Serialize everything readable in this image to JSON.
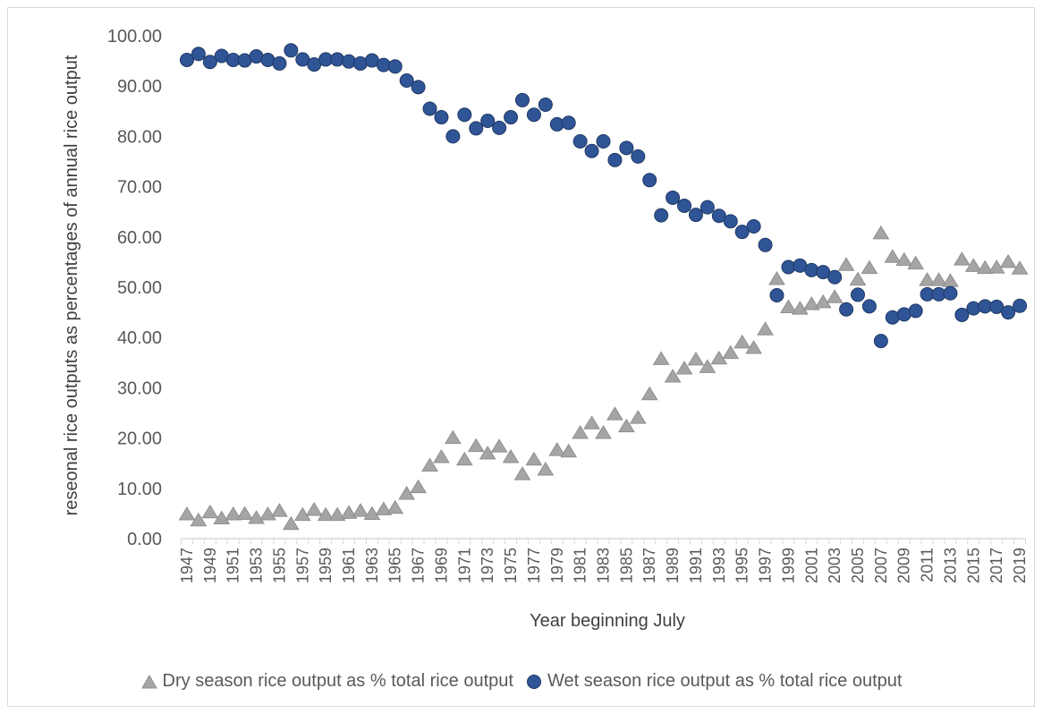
{
  "chart_data": {
    "type": "scatter",
    "x_label": "Year beginning July",
    "y_label": "reseonal rice outputs as percentages of annual rice output",
    "categories": [
      "1947",
      null,
      "1949",
      null,
      "1951",
      null,
      "1953",
      null,
      "1955",
      null,
      "1957",
      null,
      "1959",
      null,
      "1961",
      null,
      "1963",
      null,
      "1965",
      null,
      "1967",
      null,
      "1969",
      null,
      "1971",
      null,
      "1973",
      null,
      "1975",
      null,
      "1977",
      null,
      "1979",
      null,
      "1981",
      null,
      "1983",
      null,
      "1985",
      null,
      "1987",
      null,
      "1989",
      null,
      "1991",
      null,
      "1993",
      null,
      "1995",
      null,
      "1997",
      null,
      "1999",
      null,
      "2001",
      null,
      "2003",
      null,
      "2005",
      null,
      "2007",
      null,
      "2009",
      null,
      "2011",
      null,
      "2013",
      null,
      "2015",
      null,
      "2017",
      null,
      "2019"
    ],
    "ylim": [
      0,
      100
    ],
    "yticks": [
      {
        "value": 0,
        "label": "0.00"
      },
      {
        "value": 10,
        "label": "10.00"
      },
      {
        "value": 20,
        "label": "20.00"
      },
      {
        "value": 30,
        "label": "30.00"
      },
      {
        "value": 40,
        "label": "40.00"
      },
      {
        "value": 50,
        "label": "50.00"
      },
      {
        "value": 60,
        "label": "60.00"
      },
      {
        "value": 70,
        "label": "70.00"
      },
      {
        "value": 80,
        "label": "80.00"
      },
      {
        "value": 90,
        "label": "90.00"
      },
      {
        "value": 100,
        "label": "100.00"
      }
    ],
    "series": [
      {
        "name": "Dry season rice output as % total rice output",
        "color": "#a5a5a5",
        "marker": "triangle",
        "values": [
          4.8,
          3.6,
          5.2,
          4.0,
          4.8,
          4.9,
          4.1,
          4.8,
          5.5,
          2.9,
          4.7,
          5.7,
          4.7,
          4.7,
          5.1,
          5.5,
          4.9,
          5.8,
          6.1,
          8.9,
          10.2,
          14.5,
          16.2,
          20.0,
          15.7,
          18.4,
          16.9,
          18.3,
          16.2,
          12.8,
          15.7,
          13.7,
          17.6,
          17.3,
          21.0,
          22.9,
          21.0,
          24.7,
          22.3,
          24.0,
          28.7,
          35.7,
          32.2,
          33.8,
          35.6,
          34.1,
          35.8,
          36.9,
          39.0,
          37.9,
          41.6,
          51.6,
          46.0,
          45.7,
          46.6,
          47.0,
          48.0,
          54.4,
          51.5,
          53.8,
          60.7,
          56.0,
          55.4,
          54.7,
          51.4,
          51.4,
          51.2,
          55.5,
          54.2,
          53.8,
          53.9,
          55.0,
          53.7
        ]
      },
      {
        "name": "Wet season rice output as % total rice output",
        "color": "#2f5597",
        "marker": "circle",
        "values": [
          95.2,
          96.4,
          94.8,
          96.0,
          95.2,
          95.1,
          95.9,
          95.2,
          94.5,
          97.1,
          95.3,
          94.3,
          95.3,
          95.3,
          94.9,
          94.5,
          95.1,
          94.2,
          93.9,
          91.1,
          89.8,
          85.5,
          83.8,
          80.0,
          84.3,
          81.6,
          83.1,
          81.7,
          83.8,
          87.2,
          84.3,
          86.3,
          82.4,
          82.7,
          79.0,
          77.1,
          79.0,
          75.3,
          77.7,
          76.0,
          71.3,
          64.3,
          67.8,
          66.2,
          64.4,
          65.9,
          64.2,
          63.1,
          61.0,
          62.1,
          58.4,
          48.4,
          54.0,
          54.3,
          53.4,
          53.0,
          52.0,
          45.6,
          48.5,
          46.2,
          39.3,
          44.0,
          44.6,
          45.3,
          48.6,
          48.6,
          48.8,
          44.5,
          45.8,
          46.2,
          46.1,
          45.0,
          46.3
        ]
      }
    ]
  }
}
